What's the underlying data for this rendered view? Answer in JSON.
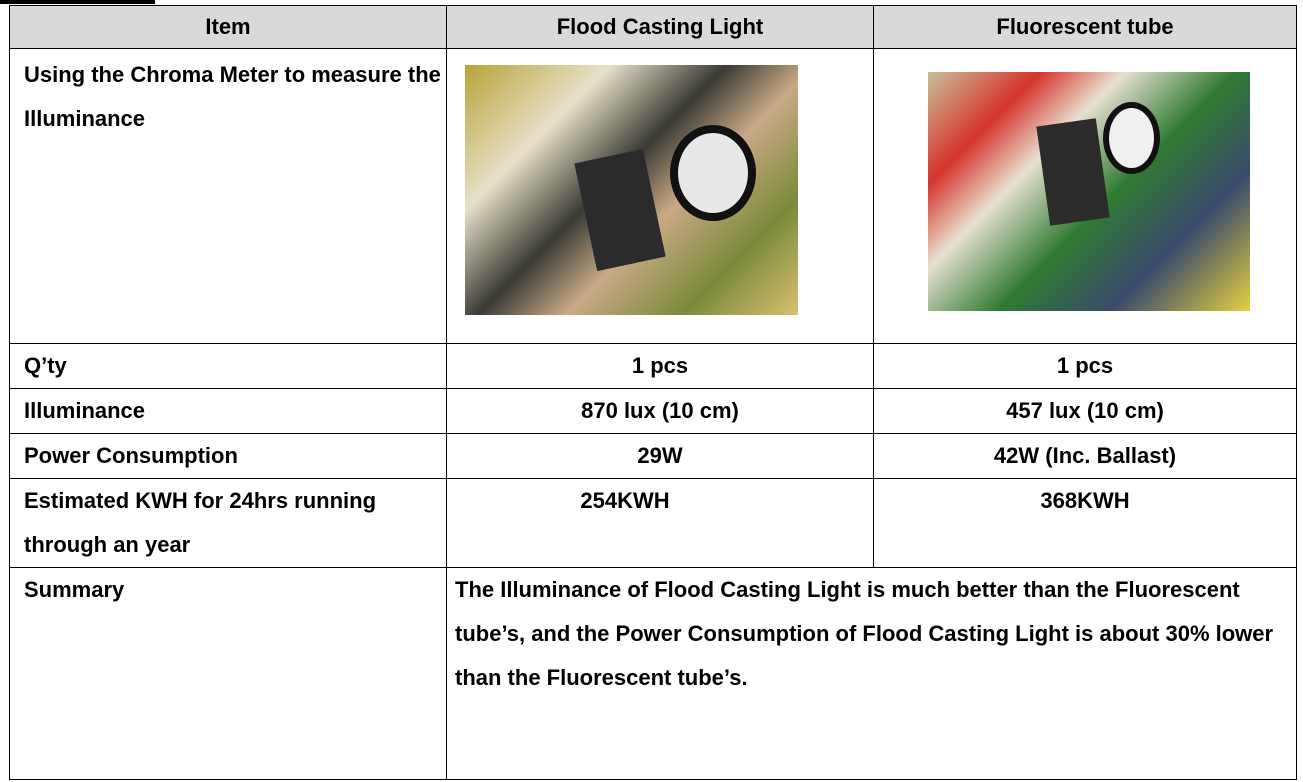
{
  "table": {
    "header": [
      "Item",
      "Flood Casting Light",
      "Fluorescent tube"
    ],
    "rows": [
      [
        "Using the Chroma Meter to measure the Illuminance"
      ],
      [
        "Q’ty",
        "1 pcs",
        "1 pcs"
      ],
      [
        "Illuminance",
        "870 lux (10 cm)",
        "457 lux (10 cm)"
      ],
      [
        "Power Consumption",
        "29W",
        "42W (Inc. Ballast)"
      ],
      [
        "Estimated KWH for 24hrs running through an year",
        "254KWH",
        "368KWH"
      ],
      [
        "Summary",
        "The Illuminance of Flood Casting Light is much better than the Fluorescent tube’s, and the Power Consumption of Flood Casting Light is about 30% lower than the Fluorescent tube’s."
      ]
    ]
  }
}
